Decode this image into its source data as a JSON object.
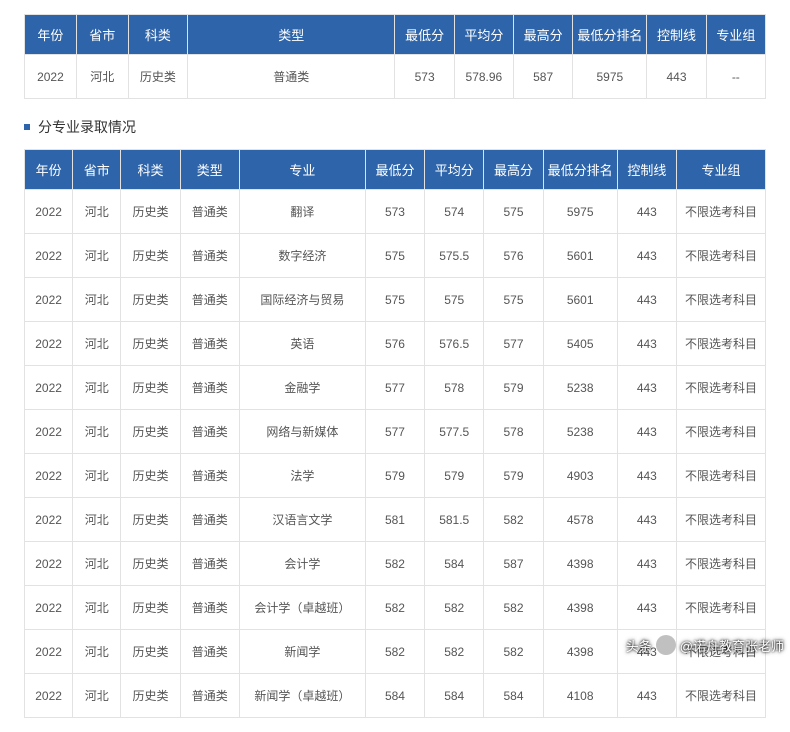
{
  "summary_table": {
    "headers": [
      "年份",
      "省市",
      "科类",
      "类型",
      "最低分",
      "平均分",
      "最高分",
      "最低分排名",
      "控制线",
      "专业组"
    ],
    "rows": [
      [
        "2022",
        "河北",
        "历史类",
        "普通类",
        "573",
        "578.96",
        "587",
        "5975",
        "443",
        "--"
      ]
    ]
  },
  "section_title": "分专业录取情况",
  "detail_table": {
    "headers": [
      "年份",
      "省市",
      "科类",
      "类型",
      "专业",
      "最低分",
      "平均分",
      "最高分",
      "最低分排名",
      "控制线",
      "专业组"
    ],
    "rows": [
      [
        "2022",
        "河北",
        "历史类",
        "普通类",
        "翻译",
        "573",
        "574",
        "575",
        "5975",
        "443",
        "不限选考科目"
      ],
      [
        "2022",
        "河北",
        "历史类",
        "普通类",
        "数字经济",
        "575",
        "575.5",
        "576",
        "5601",
        "443",
        "不限选考科目"
      ],
      [
        "2022",
        "河北",
        "历史类",
        "普通类",
        "国际经济与贸易",
        "575",
        "575",
        "575",
        "5601",
        "443",
        "不限选考科目"
      ],
      [
        "2022",
        "河北",
        "历史类",
        "普通类",
        "英语",
        "576",
        "576.5",
        "577",
        "5405",
        "443",
        "不限选考科目"
      ],
      [
        "2022",
        "河北",
        "历史类",
        "普通类",
        "金融学",
        "577",
        "578",
        "579",
        "5238",
        "443",
        "不限选考科目"
      ],
      [
        "2022",
        "河北",
        "历史类",
        "普通类",
        "网络与新媒体",
        "577",
        "577.5",
        "578",
        "5238",
        "443",
        "不限选考科目"
      ],
      [
        "2022",
        "河北",
        "历史类",
        "普通类",
        "法学",
        "579",
        "579",
        "579",
        "4903",
        "443",
        "不限选考科目"
      ],
      [
        "2022",
        "河北",
        "历史类",
        "普通类",
        "汉语言文学",
        "581",
        "581.5",
        "582",
        "4578",
        "443",
        "不限选考科目"
      ],
      [
        "2022",
        "河北",
        "历史类",
        "普通类",
        "会计学",
        "582",
        "584",
        "587",
        "4398",
        "443",
        "不限选考科目"
      ],
      [
        "2022",
        "河北",
        "历史类",
        "普通类",
        "会计学（卓越班）",
        "582",
        "582",
        "582",
        "4398",
        "443",
        "不限选考科目"
      ],
      [
        "2022",
        "河北",
        "历史类",
        "普通类",
        "新闻学",
        "582",
        "582",
        "582",
        "4398",
        "443",
        "不限选考科目"
      ],
      [
        "2022",
        "河北",
        "历史类",
        "普通类",
        "新闻学（卓越班）",
        "584",
        "584",
        "584",
        "4108",
        "443",
        "不限选考科目"
      ]
    ]
  },
  "watermark": {
    "prefix": "头条",
    "handle": "@诺舟教育张老师"
  }
}
